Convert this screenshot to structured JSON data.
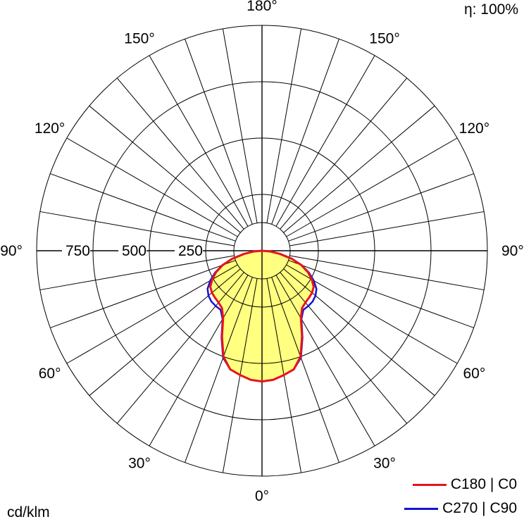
{
  "efficiency_label": "η: 100%",
  "units_label": "cd/klm",
  "colors": {
    "fill": "#ffff80",
    "grid": "#000000"
  },
  "chart_data": {
    "type": "polar",
    "title": "",
    "radial_ticks": [
      250,
      500,
      750
    ],
    "radial_tick_labels": [
      "250",
      "500",
      "750"
    ],
    "r_max": 1000,
    "angle_labels": [
      {
        "text": "0°",
        "angle": 0
      },
      {
        "text": "30°",
        "angle": -30
      },
      {
        "text": "30°",
        "angle": 30
      },
      {
        "text": "60°",
        "angle": -60
      },
      {
        "text": "60°",
        "angle": 60
      },
      {
        "text": "90°",
        "angle": -90
      },
      {
        "text": "90°",
        "angle": 90
      },
      {
        "text": "120°",
        "angle": -120
      },
      {
        "text": "120°",
        "angle": 120
      },
      {
        "text": "150°",
        "angle": -150
      },
      {
        "text": "150°",
        "angle": 150
      },
      {
        "text": "180°",
        "angle": 180
      }
    ],
    "angles": [
      0,
      5,
      10,
      15,
      20,
      25,
      30,
      35,
      40,
      45,
      50,
      55,
      60,
      65,
      70,
      75,
      80,
      85,
      90
    ],
    "series": [
      {
        "name": "C180 | C0",
        "color": "#e8141c",
        "values": [
          580,
          575,
          560,
          545,
          500,
          420,
          345,
          310,
          300,
          295,
          290,
          280,
          255,
          225,
          185,
          135,
          80,
          35,
          0
        ]
      },
      {
        "name": "C270 | C90",
        "color": "#1414d0",
        "values": [
          580,
          575,
          560,
          545,
          505,
          425,
          350,
          320,
          320,
          318,
          310,
          295,
          265,
          230,
          188,
          138,
          82,
          36,
          0
        ]
      }
    ],
    "legend_position": "bottom-right",
    "grid": true
  }
}
